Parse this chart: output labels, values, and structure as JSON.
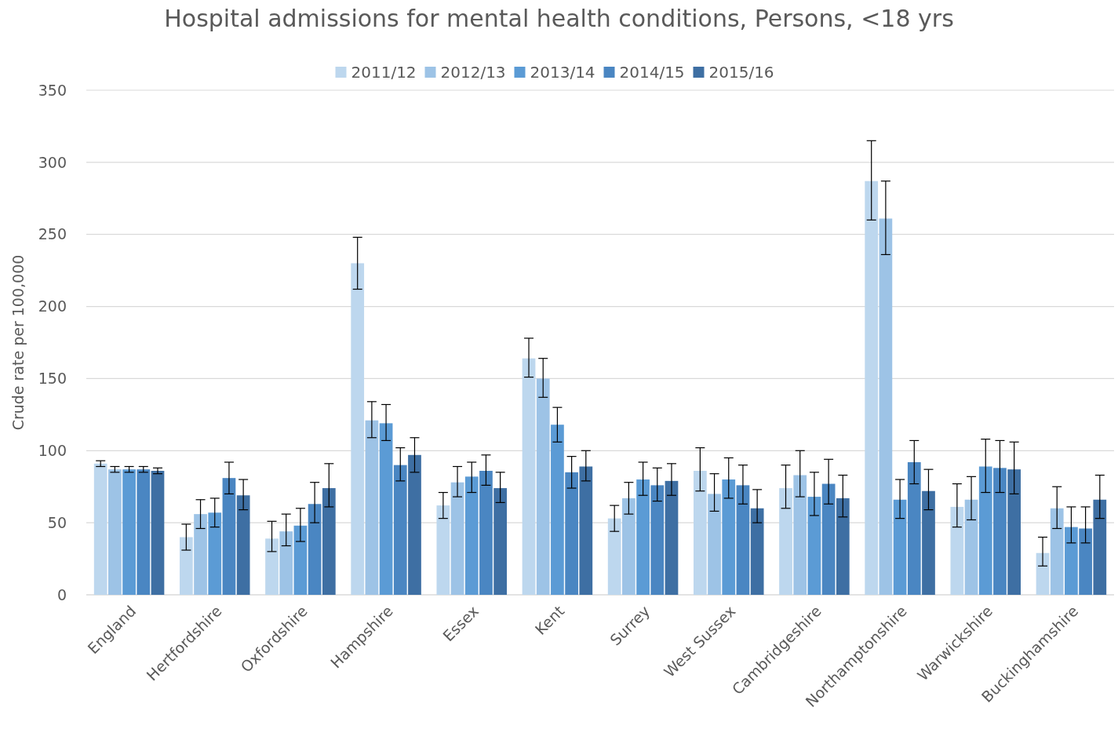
{
  "chart_data": {
    "type": "bar",
    "title": "Hospital admissions for mental health conditions, Persons, <18 yrs",
    "ylabel": "Crude rate per 100,000",
    "categories": [
      "England",
      "Hertfordshire",
      "Oxfordshire",
      "Hampshire",
      "Essex",
      "Kent",
      "Surrey",
      "West Sussex",
      "Cambridgeshire",
      "Northamptonshire",
      "Warwickshire",
      "Buckinghamshire"
    ],
    "series": [
      {
        "name": "2011/12",
        "color": "#bdd7ee",
        "values": [
          91,
          40,
          39,
          230,
          62,
          164,
          53,
          86,
          74,
          287,
          61,
          29
        ],
        "errors": [
          [
            89,
            93
          ],
          [
            31,
            49
          ],
          [
            30,
            51
          ],
          [
            212,
            248
          ],
          [
            53,
            71
          ],
          [
            151,
            178
          ],
          [
            44,
            62
          ],
          [
            72,
            102
          ],
          [
            60,
            90
          ],
          [
            260,
            315
          ],
          [
            47,
            77
          ],
          [
            20,
            40
          ]
        ]
      },
      {
        "name": "2012/13",
        "color": "#9dc3e6",
        "values": [
          87,
          56,
          44,
          121,
          78,
          150,
          67,
          70,
          83,
          261,
          66,
          60
        ],
        "errors": [
          [
            85,
            89
          ],
          [
            46,
            66
          ],
          [
            34,
            56
          ],
          [
            109,
            134
          ],
          [
            68,
            89
          ],
          [
            137,
            164
          ],
          [
            56,
            78
          ],
          [
            58,
            84
          ],
          [
            68,
            100
          ],
          [
            236,
            287
          ],
          [
            52,
            82
          ],
          [
            46,
            75
          ]
        ]
      },
      {
        "name": "2013/14",
        "color": "#5b9bd5",
        "values": [
          87,
          57,
          48,
          119,
          82,
          118,
          80,
          80,
          68,
          66,
          89,
          47
        ],
        "errors": [
          [
            85,
            89
          ],
          [
            47,
            67
          ],
          [
            37,
            60
          ],
          [
            107,
            132
          ],
          [
            71,
            92
          ],
          [
            106,
            130
          ],
          [
            69,
            92
          ],
          [
            67,
            95
          ],
          [
            55,
            85
          ],
          [
            53,
            80
          ],
          [
            71,
            108
          ],
          [
            36,
            61
          ]
        ]
      },
      {
        "name": "2014/15",
        "color": "#4a86c2",
        "values": [
          87,
          81,
          63,
          90,
          86,
          85,
          76,
          76,
          77,
          92,
          88,
          46
        ],
        "errors": [
          [
            85,
            89
          ],
          [
            70,
            92
          ],
          [
            50,
            78
          ],
          [
            79,
            102
          ],
          [
            76,
            97
          ],
          [
            74,
            96
          ],
          [
            65,
            88
          ],
          [
            63,
            90
          ],
          [
            63,
            94
          ],
          [
            77,
            107
          ],
          [
            71,
            107
          ],
          [
            36,
            61
          ]
        ]
      },
      {
        "name": "2015/16",
        "color": "#3e6fa3",
        "values": [
          86,
          69,
          74,
          97,
          74,
          89,
          79,
          60,
          67,
          72,
          87,
          66
        ],
        "errors": [
          [
            84,
            88
          ],
          [
            59,
            80
          ],
          [
            61,
            91
          ],
          [
            85,
            109
          ],
          [
            64,
            85
          ],
          [
            79,
            100
          ],
          [
            69,
            91
          ],
          [
            50,
            73
          ],
          [
            54,
            83
          ],
          [
            59,
            87
          ],
          [
            70,
            106
          ],
          [
            53,
            83
          ]
        ]
      }
    ],
    "ylim": [
      0,
      350
    ],
    "yticks": [
      0,
      50,
      100,
      150,
      200,
      250,
      300,
      350
    ],
    "grid": "y",
    "legend": "top"
  }
}
